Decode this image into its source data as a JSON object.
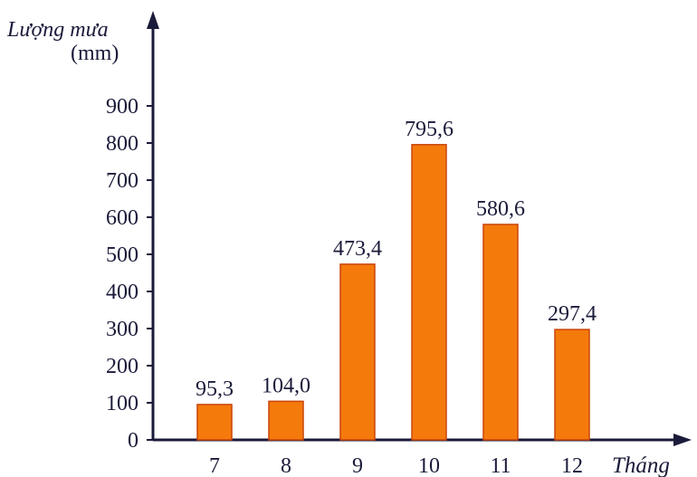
{
  "chart_data": {
    "type": "bar",
    "categories": [
      "7",
      "8",
      "9",
      "10",
      "11",
      "12"
    ],
    "values": [
      95.3,
      104.0,
      473.4,
      795.6,
      580.6,
      297.4
    ],
    "value_labels": [
      "95,3",
      "104,0",
      "473,4",
      "795,6",
      "580,6",
      "297,4"
    ],
    "title": "",
    "xlabel": "Tháng",
    "ylabel": [
      "Lượng mưa",
      "(mm)"
    ],
    "yticks": [
      0,
      100,
      200,
      300,
      400,
      500,
      600,
      700,
      800,
      900
    ],
    "ylim": [
      0,
      900
    ],
    "grid": false,
    "colors": {
      "bar_fill": "#f57a0c",
      "bar_stroke": "#c8450a",
      "axis": "#1a1a3a",
      "text": "#1a1a3a"
    }
  }
}
